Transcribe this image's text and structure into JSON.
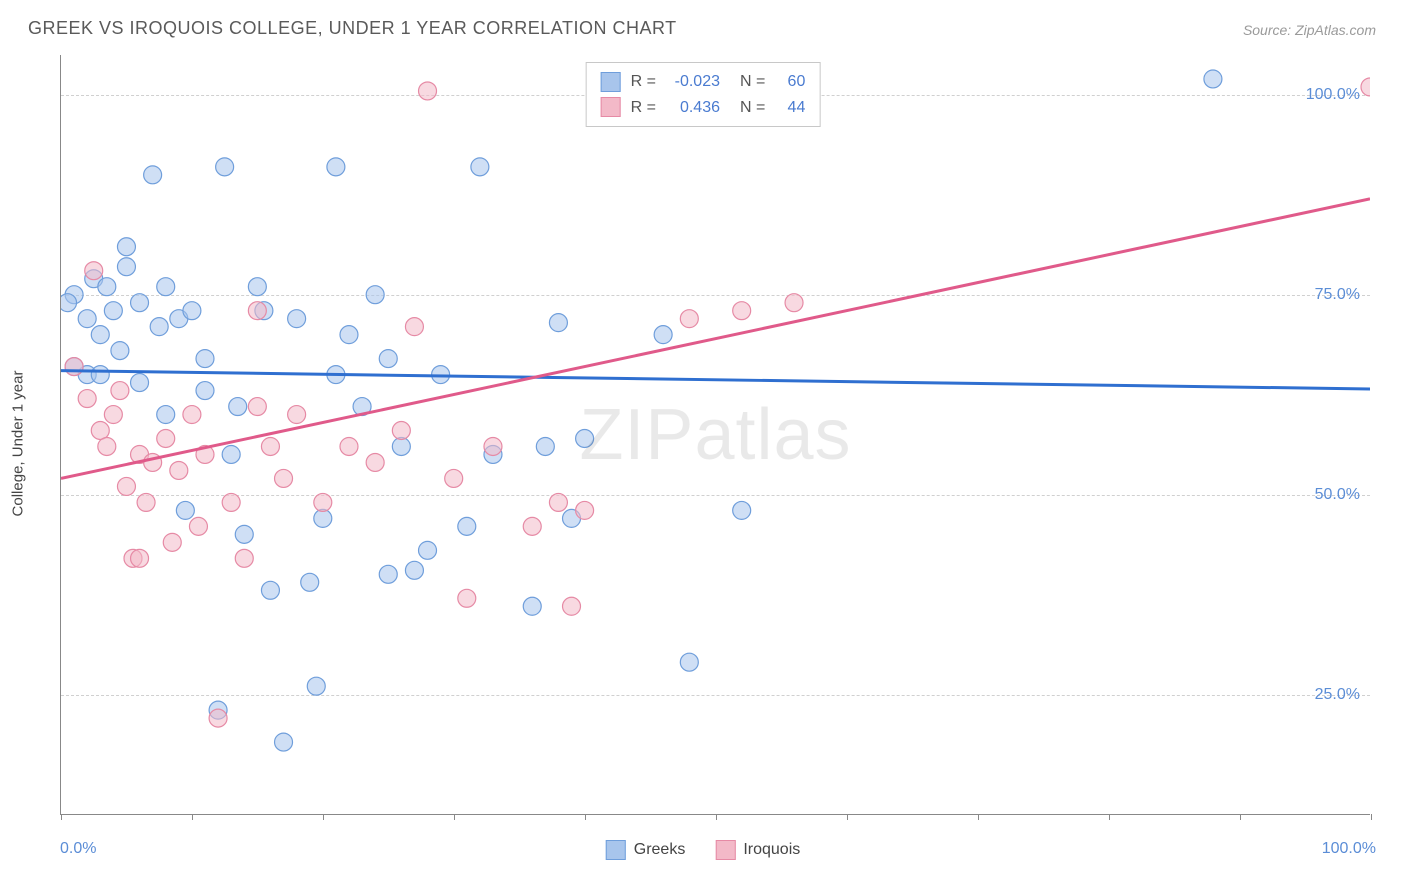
{
  "title": "GREEK VS IROQUOIS COLLEGE, UNDER 1 YEAR CORRELATION CHART",
  "source": "Source: ZipAtlas.com",
  "watermark": "ZIPatlas",
  "yaxis_title": "College, Under 1 year",
  "chart": {
    "type": "scatter",
    "background_color": "#ffffff",
    "grid_color": "#d0d0d0",
    "axis_color": "#888888",
    "xlim": [
      0,
      100
    ],
    "ylim": [
      10,
      105
    ],
    "x_label_min": "0.0%",
    "x_label_max": "100.0%",
    "yticks": [
      25,
      50,
      75,
      100
    ],
    "ytick_labels": [
      "25.0%",
      "50.0%",
      "75.0%",
      "100.0%"
    ],
    "xtick_positions": [
      0,
      10,
      20,
      30,
      40,
      50,
      60,
      70,
      80,
      90,
      100
    ],
    "marker_radius": 9,
    "marker_opacity": 0.55,
    "line_width": 3,
    "series": [
      {
        "name": "Greeks",
        "color_fill": "#a8c5ec",
        "color_stroke": "#6f9edb",
        "line_color": "#2f6fd0",
        "R": "-0.023",
        "N": "60",
        "trend": {
          "x1": 0,
          "y1": 65.5,
          "x2": 100,
          "y2": 63.2
        },
        "points": [
          [
            1,
            75
          ],
          [
            2,
            72
          ],
          [
            2.5,
            77
          ],
          [
            3,
            70
          ],
          [
            3.5,
            76
          ],
          [
            4,
            73
          ],
          [
            4.5,
            68
          ],
          [
            5,
            78.5
          ],
          [
            5,
            81
          ],
          [
            6,
            74
          ],
          [
            6,
            64
          ],
          [
            7,
            90
          ],
          [
            7.5,
            71
          ],
          [
            8,
            60
          ],
          [
            8,
            76
          ],
          [
            9,
            72
          ],
          [
            9.5,
            48
          ],
          [
            10,
            73
          ],
          [
            11,
            67
          ],
          [
            11,
            63
          ],
          [
            12,
            23
          ],
          [
            12.5,
            91
          ],
          [
            13,
            55
          ],
          [
            13.5,
            61
          ],
          [
            14,
            45
          ],
          [
            15,
            76
          ],
          [
            15.5,
            73
          ],
          [
            16,
            38
          ],
          [
            17,
            19
          ],
          [
            18,
            72
          ],
          [
            19,
            39
          ],
          [
            19.5,
            26
          ],
          [
            20,
            47
          ],
          [
            21,
            65
          ],
          [
            21,
            91
          ],
          [
            22,
            70
          ],
          [
            23,
            61
          ],
          [
            24,
            75
          ],
          [
            25,
            67
          ],
          [
            25,
            40
          ],
          [
            26,
            56
          ],
          [
            27,
            40.5
          ],
          [
            28,
            43
          ],
          [
            29,
            65
          ],
          [
            31,
            46
          ],
          [
            32,
            91
          ],
          [
            33,
            55
          ],
          [
            36,
            36
          ],
          [
            37,
            56
          ],
          [
            38,
            71.5
          ],
          [
            39,
            47
          ],
          [
            40,
            57
          ],
          [
            46,
            70
          ],
          [
            48,
            29
          ],
          [
            52,
            48
          ],
          [
            88,
            102
          ],
          [
            2,
            65
          ],
          [
            1,
            66
          ],
          [
            0.5,
            74
          ],
          [
            3,
            65
          ]
        ]
      },
      {
        "name": "Iroquois",
        "color_fill": "#f3b9c8",
        "color_stroke": "#e68aa5",
        "line_color": "#e05a8a",
        "R": "0.436",
        "N": "44",
        "trend": {
          "x1": 0,
          "y1": 52,
          "x2": 100,
          "y2": 87
        },
        "points": [
          [
            1,
            66
          ],
          [
            2,
            62
          ],
          [
            2.5,
            78
          ],
          [
            3,
            58
          ],
          [
            3.5,
            56
          ],
          [
            4,
            60
          ],
          [
            4.5,
            63
          ],
          [
            5,
            51
          ],
          [
            5.5,
            42
          ],
          [
            6,
            55
          ],
          [
            6.5,
            49
          ],
          [
            7,
            54
          ],
          [
            8,
            57
          ],
          [
            8.5,
            44
          ],
          [
            9,
            53
          ],
          [
            10,
            60
          ],
          [
            10.5,
            46
          ],
          [
            11,
            55
          ],
          [
            12,
            22
          ],
          [
            13,
            49
          ],
          [
            14,
            42
          ],
          [
            15,
            61
          ],
          [
            15,
            73
          ],
          [
            16,
            56
          ],
          [
            17,
            52
          ],
          [
            18,
            60
          ],
          [
            20,
            49
          ],
          [
            22,
            56
          ],
          [
            24,
            54
          ],
          [
            26,
            58
          ],
          [
            27,
            71
          ],
          [
            28,
            100.5
          ],
          [
            30,
            52
          ],
          [
            31,
            37
          ],
          [
            33,
            56
          ],
          [
            36,
            46
          ],
          [
            38,
            49
          ],
          [
            39,
            36
          ],
          [
            40,
            48
          ],
          [
            48,
            72
          ],
          [
            52,
            73
          ],
          [
            56,
            74
          ],
          [
            100,
            101
          ],
          [
            6,
            42
          ]
        ]
      }
    ]
  },
  "legend_bottom": [
    {
      "label": "Greeks",
      "fill": "#a8c5ec",
      "stroke": "#6f9edb"
    },
    {
      "label": "Iroquois",
      "fill": "#f3b9c8",
      "stroke": "#e68aa5"
    }
  ],
  "legend_top_labels": {
    "R": "R =",
    "N": "N ="
  }
}
